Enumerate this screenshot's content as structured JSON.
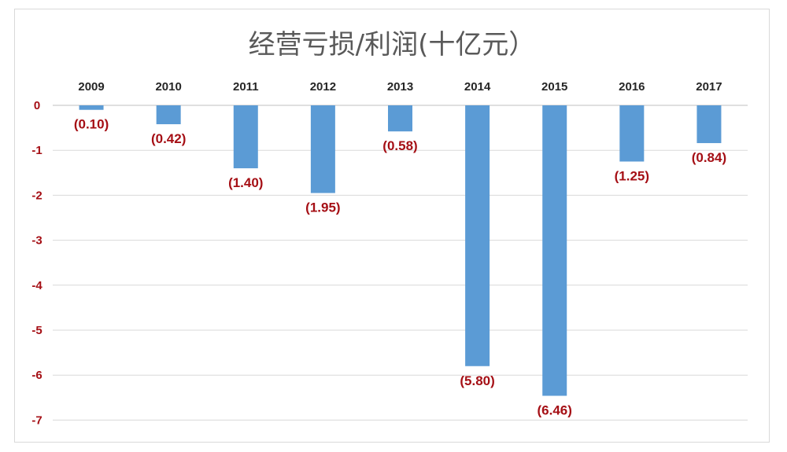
{
  "chart_data": {
    "type": "bar",
    "title": "经营亏损/利润(十亿元）",
    "categories": [
      "2009",
      "2010",
      "2011",
      "2012",
      "2013",
      "2014",
      "2015",
      "2016",
      "2017"
    ],
    "values": [
      -0.1,
      -0.42,
      -1.4,
      -1.95,
      -0.58,
      -5.8,
      -6.46,
      -1.25,
      -0.84
    ],
    "data_labels": [
      "(0.10)",
      "(0.42)",
      "(1.40)",
      "(1.95)",
      "(0.58)",
      "(5.80)",
      "(6.46)",
      "(1.25)",
      "(0.84)"
    ],
    "y_ticks": [
      "0",
      "-1",
      "-2",
      "-3",
      "-4",
      "-5",
      "-6",
      "-7"
    ],
    "ylim": [
      -7,
      0
    ],
    "xlabel": "",
    "ylabel": "",
    "grid": true,
    "legend": "none",
    "category_axis_position": "top",
    "colors": {
      "bar": "#5b9bd5",
      "labels": "#a50f15",
      "title": "#595959",
      "categories": "#262626",
      "grid": "#d9d9d9"
    }
  }
}
